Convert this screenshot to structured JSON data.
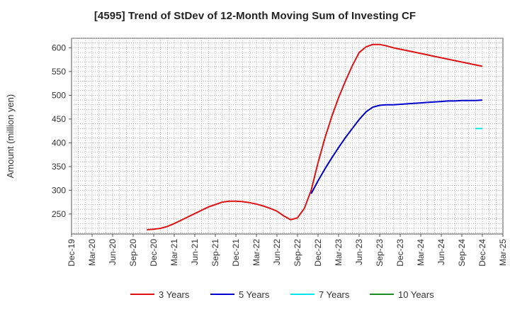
{
  "title": "[4595]  Trend of StDev of 12-Month Moving Sum of Investing CF",
  "chart_data": {
    "type": "line",
    "title": "[4595]  Trend of StDev of 12-Month Moving Sum of Investing CF",
    "ylabel": "Amount (million yen)",
    "xlabel": "",
    "ylim": [
      208,
      620
    ],
    "yticks": [
      250,
      300,
      350,
      400,
      450,
      500,
      550,
      600
    ],
    "grid": true,
    "legend_position": "bottom",
    "x_tick_labels": [
      "Dec-19",
      "Mar-20",
      "Jun-20",
      "Sep-20",
      "Dec-20",
      "Mar-21",
      "Jun-21",
      "Sep-21",
      "Dec-21",
      "Mar-22",
      "Jun-22",
      "Sep-22",
      "Dec-22",
      "Mar-23",
      "Jun-23",
      "Sep-23",
      "Dec-23",
      "Mar-24",
      "Jun-24",
      "Sep-24",
      "Dec-24",
      "Mar-25"
    ],
    "series": [
      {
        "name": "3 Years",
        "color": "#dd1111",
        "x": [
          "Nov-20",
          "Dec-20",
          "Jan-21",
          "Feb-21",
          "Mar-21",
          "Apr-21",
          "May-21",
          "Jun-21",
          "Jul-21",
          "Aug-21",
          "Sep-21",
          "Oct-21",
          "Nov-21",
          "Dec-21",
          "Jan-22",
          "Feb-22",
          "Mar-22",
          "Apr-22",
          "May-22",
          "Jun-22",
          "Jul-22",
          "Aug-22",
          "Sep-22",
          "Oct-22",
          "Nov-22",
          "Dec-22",
          "Jan-23",
          "Feb-23",
          "Mar-23",
          "Apr-23",
          "May-23",
          "Jun-23",
          "Jul-23",
          "Aug-23",
          "Sep-23",
          "Oct-23",
          "Nov-23",
          "Dec-23",
          "Jan-24",
          "Feb-24",
          "Mar-24",
          "Apr-24",
          "May-24",
          "Jun-24",
          "Jul-24",
          "Aug-24",
          "Sep-24",
          "Oct-24",
          "Nov-24",
          "Dec-24"
        ],
        "values": [
          217,
          218,
          220,
          224,
          230,
          237,
          244,
          251,
          258,
          265,
          270,
          275,
          277,
          277,
          276,
          274,
          271,
          267,
          262,
          256,
          246,
          238,
          242,
          262,
          300,
          358,
          410,
          455,
          495,
          530,
          562,
          590,
          602,
          607,
          607,
          604,
          600,
          597,
          594,
          591,
          588,
          585,
          582,
          579,
          576,
          573,
          570,
          567,
          564,
          561
        ]
      },
      {
        "name": "5 Years",
        "color": "#0000cc",
        "x": [
          "Nov-22",
          "Dec-22",
          "Jan-23",
          "Feb-23",
          "Mar-23",
          "Apr-23",
          "May-23",
          "Jun-23",
          "Jul-23",
          "Aug-23",
          "Sep-23",
          "Oct-23",
          "Nov-23",
          "Dec-23",
          "Jan-24",
          "Feb-24",
          "Mar-24",
          "Apr-24",
          "May-24",
          "Jun-24",
          "Jul-24",
          "Aug-24",
          "Sep-24",
          "Oct-24",
          "Nov-24",
          "Dec-24"
        ],
        "values": [
          293,
          320,
          345,
          368,
          390,
          411,
          430,
          449,
          465,
          475,
          479,
          480,
          480,
          481,
          482,
          483,
          484,
          485,
          486,
          487,
          488,
          488,
          489,
          489,
          489,
          490
        ]
      },
      {
        "name": "7 Years",
        "color": "#00e5ee",
        "x": [
          "Nov-24",
          "Dec-24"
        ],
        "values": [
          430,
          430
        ]
      },
      {
        "name": "10 Years",
        "color": "#228b22",
        "x": [],
        "values": []
      }
    ]
  }
}
